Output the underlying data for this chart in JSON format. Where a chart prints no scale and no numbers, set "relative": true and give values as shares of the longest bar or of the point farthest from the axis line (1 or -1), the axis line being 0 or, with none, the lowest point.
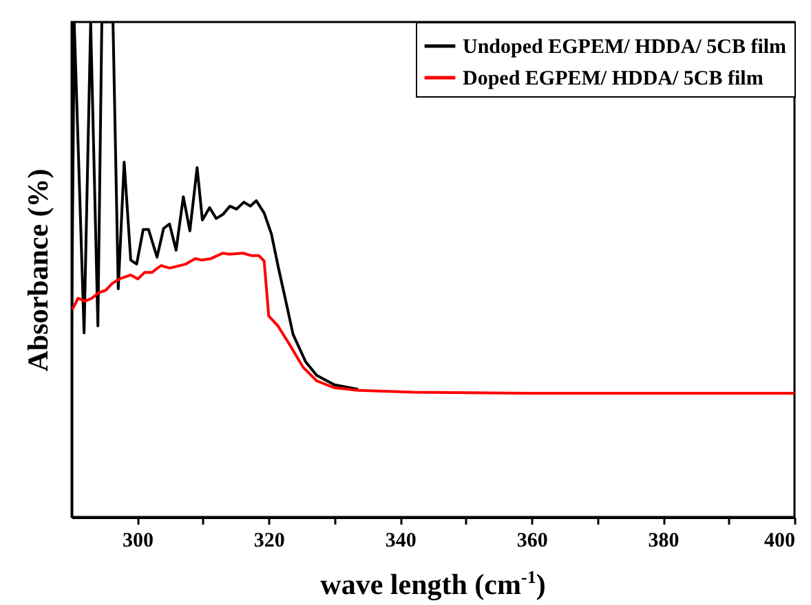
{
  "chart_data": {
    "type": "line",
    "relative": true,
    "xlabel": "wave length (cm$^{-1}$)",
    "ylabel": "Absorbance (%)",
    "xlim": [
      290,
      400
    ],
    "xticks": [
      300,
      {
        "value": 310,
        "label": null
      },
      320,
      {
        "value": 330,
        "label": null
      },
      340,
      {
        "value": 350,
        "label": null
      },
      360,
      {
        "value": 370,
        "label": null
      },
      380,
      {
        "value": 390,
        "label": null
      },
      400
    ],
    "grid": false,
    "legend": "top right",
    "series": [
      {
        "name": "Undoped EGPEM/ HDDA/ 5CB film",
        "color": "#000000",
        "x": [
          290.0,
          290.4,
          291.9,
          292.9,
          294.0,
          294.6,
          296.3,
          297.1,
          298.0,
          299.0,
          299.9,
          300.9,
          301.7,
          303.0,
          304.0,
          304.9,
          305.9,
          307.0,
          308.0,
          309.1,
          309.9,
          311.0,
          312.0,
          313.0,
          314.1,
          315.1,
          316.2,
          317.2,
          318.1,
          319.3,
          320.4,
          321.4,
          322.5,
          323.7,
          325.6,
          327.3,
          330.0,
          333.6
        ],
        "values": [
          0.378,
          1,
          0.372,
          1,
          0.386,
          1,
          1,
          0.461,
          0.717,
          0.519,
          0.511,
          0.581,
          0.581,
          0.525,
          0.583,
          0.592,
          0.539,
          0.647,
          0.578,
          0.706,
          0.6,
          0.625,
          0.603,
          0.611,
          0.628,
          0.622,
          0.636,
          0.628,
          0.639,
          0.614,
          0.572,
          0.508,
          0.442,
          0.369,
          0.314,
          0.286,
          0.267,
          0.258
        ]
      },
      {
        "name": "Doped EGPEM/ HDDA/ 5CB film",
        "color": "#ff0000",
        "x": [
          290.1,
          291.0,
          292.0,
          293.1,
          294.1,
          295.2,
          296.2,
          297.3,
          299.0,
          300.1,
          301.1,
          302.2,
          303.6,
          304.9,
          305.9,
          307.4,
          308.8,
          309.8,
          311.2,
          313.0,
          314.0,
          316.1,
          317.4,
          318.5,
          319.3,
          320.0,
          321.4,
          323.1,
          325.2,
          327.3,
          330.0,
          333.6,
          342.0,
          360.0,
          380.0,
          400.0
        ],
        "values": [
          0.419,
          0.442,
          0.436,
          0.442,
          0.453,
          0.458,
          0.472,
          0.481,
          0.489,
          0.481,
          0.494,
          0.494,
          0.508,
          0.503,
          0.506,
          0.511,
          0.522,
          0.519,
          0.522,
          0.533,
          0.531,
          0.533,
          0.528,
          0.528,
          0.517,
          0.406,
          0.386,
          0.35,
          0.303,
          0.275,
          0.261,
          0.256,
          0.252,
          0.25,
          0.25,
          0.25
        ]
      }
    ]
  }
}
